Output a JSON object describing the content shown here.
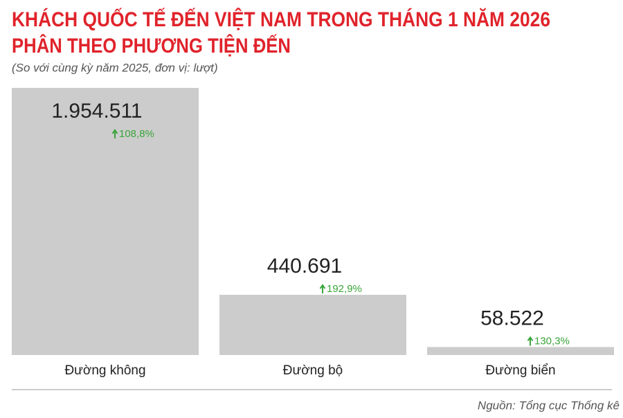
{
  "chart_data": {
    "type": "bar",
    "title": [
      "KHÁCH QUỐC TẾ ĐẾN VIỆT NAM TRONG THÁNG 1 NĂM 2026",
      "PHÂN THEO PHƯƠNG TIỆN ĐẾN"
    ],
    "subtitle": "(So với cùng kỳ năm 2025, đơn vị: lượt)",
    "categories": [
      "Đường không",
      "Đường bộ",
      "Đường biển"
    ],
    "values": [
      1954511,
      440691,
      58522
    ],
    "value_labels": [
      "1.954.511",
      "440.691",
      "58.522"
    ],
    "color": "#cccccc",
    "growth": {
      "values": [
        108.8,
        192.9,
        130.3
      ],
      "value_labels": [
        "108,8%",
        "192,9%",
        "130,3%"
      ],
      "color": "#3aa53a"
    },
    "ylim": [
      0,
      1954511
    ],
    "source": "Nguồn: Tổng cục Thống kê"
  }
}
